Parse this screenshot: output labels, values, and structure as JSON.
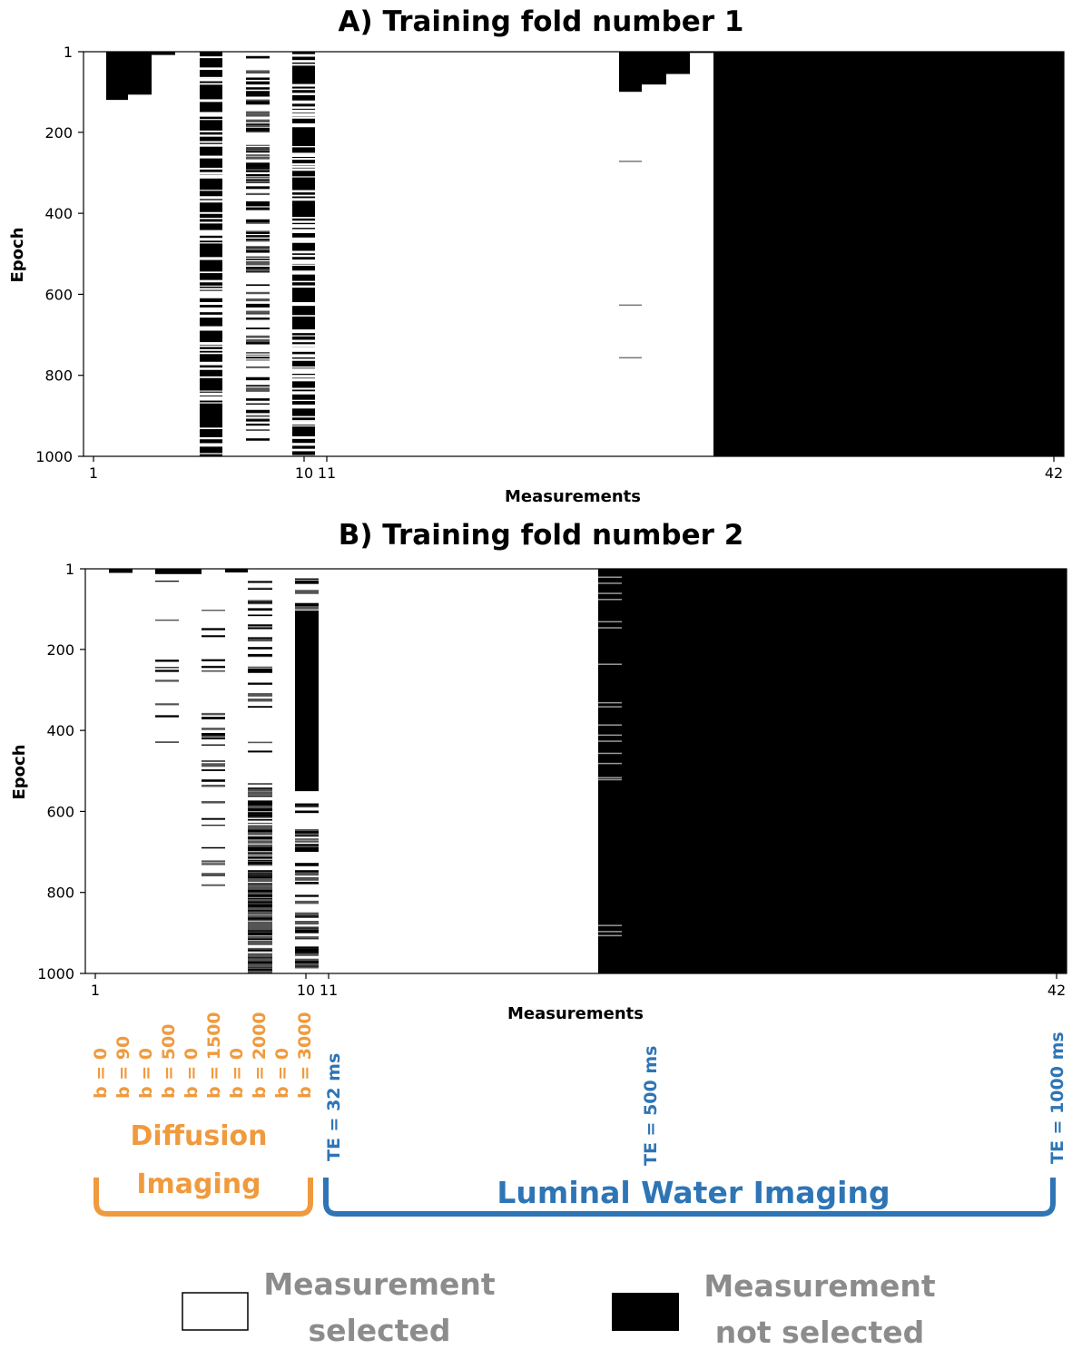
{
  "colors": {
    "selected": "#ffffff",
    "not_selected": "#000000",
    "diffusion": "#f09a3e",
    "luminal": "#2e75b6",
    "legend_text": "#8c8c8c"
  },
  "chart_data": [
    {
      "type": "heatmap",
      "title": "A) Training fold number 1",
      "xlabel": "Measurements",
      "ylabel": "Epoch",
      "xticks": [
        "1",
        "10",
        "11",
        "42"
      ],
      "yticks": [
        "1",
        "200",
        "400",
        "600",
        "800",
        "1000"
      ],
      "ylim": [
        1,
        1000
      ],
      "xlim": [
        1,
        42
      ],
      "columns": [
        {
          "measurement": 1,
          "not_selected_until_epoch": 1
        },
        {
          "measurement": 2,
          "not_selected_until_epoch": 120
        },
        {
          "measurement": 3,
          "not_selected_until_epoch": 107
        },
        {
          "measurement": 4,
          "not_selected_until_epoch": 9
        },
        {
          "measurement": 5,
          "not_selected_until_epoch": 1
        },
        {
          "measurement": 6,
          "pattern": "mostly_not_selected_with_gaps"
        },
        {
          "measurement": 7,
          "not_selected_until_epoch": 1
        },
        {
          "measurement": 8,
          "pattern": "mixed"
        },
        {
          "measurement": 9,
          "not_selected_until_epoch": 1
        },
        {
          "measurement": 10,
          "pattern": "mostly_not_selected_with_gaps"
        },
        {
          "measurement": "11-23",
          "not_selected_until_epoch": 1
        },
        {
          "measurement": 24,
          "not_selected_until_epoch": 100
        },
        {
          "measurement": 25,
          "not_selected_until_epoch": 100
        },
        {
          "measurement": 26,
          "not_selected_until_epoch": 82
        },
        {
          "measurement": 27,
          "not_selected_until_epoch": 56
        },
        {
          "measurement": 28,
          "not_selected_until_epoch": 4
        },
        {
          "measurement": "29-42",
          "not_selected_until_epoch": 1000
        }
      ]
    },
    {
      "type": "heatmap",
      "title": "B) Training fold number 2",
      "xlabel": "Measurements",
      "ylabel": "Epoch",
      "xticks": [
        "1",
        "10",
        "11",
        "42"
      ],
      "yticks": [
        "1",
        "200",
        "400",
        "600",
        "800",
        "1000"
      ],
      "ylim": [
        1,
        1000
      ],
      "xlim": [
        1,
        42
      ],
      "columns": [
        {
          "measurement": 2,
          "not_selected_until_epoch": 11
        },
        {
          "measurement": 4,
          "not_selected_until_epoch": 14
        },
        {
          "measurement": 5,
          "not_selected_until_epoch": 10
        },
        {
          "measurement": 6,
          "pattern": "mostly_selected_few_lines"
        },
        {
          "measurement": 7,
          "not_selected_until_epoch": 15
        },
        {
          "measurement": 8,
          "pattern": "mixed_dense_after_550"
        },
        {
          "measurement": 10,
          "pattern": "not_selected_100_to_550_then_mixed"
        },
        {
          "measurement": 23,
          "pattern": "not_selected_with_gaps"
        },
        {
          "measurement": 24,
          "not_selected_until_epoch": 1000
        },
        {
          "measurement": "25-42",
          "not_selected_until_epoch": 1000
        }
      ]
    }
  ],
  "annotations": {
    "diffusion_labels": [
      "b = 0",
      "b = 90",
      "b = 0",
      "b = 500",
      "b = 0",
      "b = 1500",
      "b = 0",
      "b = 2000",
      "b = 0",
      "b = 3000"
    ],
    "te_labels": [
      "TE = 32 ms",
      "TE = 500 ms",
      "TE = 1000 ms"
    ],
    "diffusion_group": [
      "Diffusion",
      "Imaging"
    ],
    "luminal_group": "Luminal Water Imaging"
  },
  "legend": {
    "selected": [
      "Measurement",
      "selected"
    ],
    "not_selected": [
      "Measurement",
      "not selected"
    ]
  }
}
